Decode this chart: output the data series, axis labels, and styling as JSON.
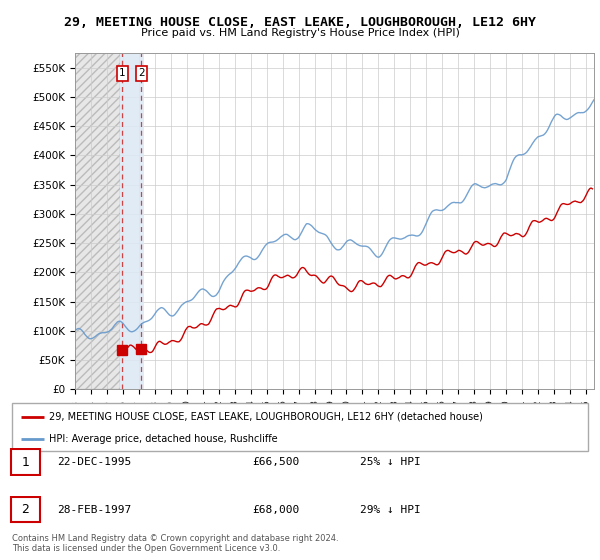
{
  "title": "29, MEETING HOUSE CLOSE, EAST LEAKE, LOUGHBOROUGH, LE12 6HY",
  "subtitle": "Price paid vs. HM Land Registry's House Price Index (HPI)",
  "hpi_color": "#6699cc",
  "price_color": "#cc0000",
  "dot_color": "#cc0000",
  "yticks": [
    0,
    50000,
    100000,
    150000,
    200000,
    250000,
    300000,
    350000,
    400000,
    450000,
    500000,
    550000
  ],
  "ytick_labels": [
    "£0",
    "£50K",
    "£100K",
    "£150K",
    "£200K",
    "£250K",
    "£300K",
    "£350K",
    "£400K",
    "£450K",
    "£500K",
    "£550K"
  ],
  "xmin": 1993.0,
  "xmax": 2025.5,
  "ymin": 0,
  "ymax": 575000,
  "sale1_x": 1995.97,
  "sale1_y": 66500,
  "sale1_label": "1",
  "sale2_x": 1997.16,
  "sale2_y": 68000,
  "sale2_label": "2",
  "legend_line1": "29, MEETING HOUSE CLOSE, EAST LEAKE, LOUGHBOROUGH, LE12 6HY (detached house)",
  "legend_line2": "HPI: Average price, detached house, Rushcliffe",
  "table_rows": [
    [
      "1",
      "22-DEC-1995",
      "£66,500",
      "25% ↓ HPI"
    ],
    [
      "2",
      "28-FEB-1997",
      "£68,000",
      "29% ↓ HPI"
    ]
  ],
  "footer": "Contains HM Land Registry data © Crown copyright and database right 2024.\nThis data is licensed under the Open Government Licence v3.0.",
  "hatch_region_x1": 1993.0,
  "hatch_region_x2": 1995.8,
  "highlight_region_x1": 1995.8,
  "highlight_region_x2": 1997.3
}
